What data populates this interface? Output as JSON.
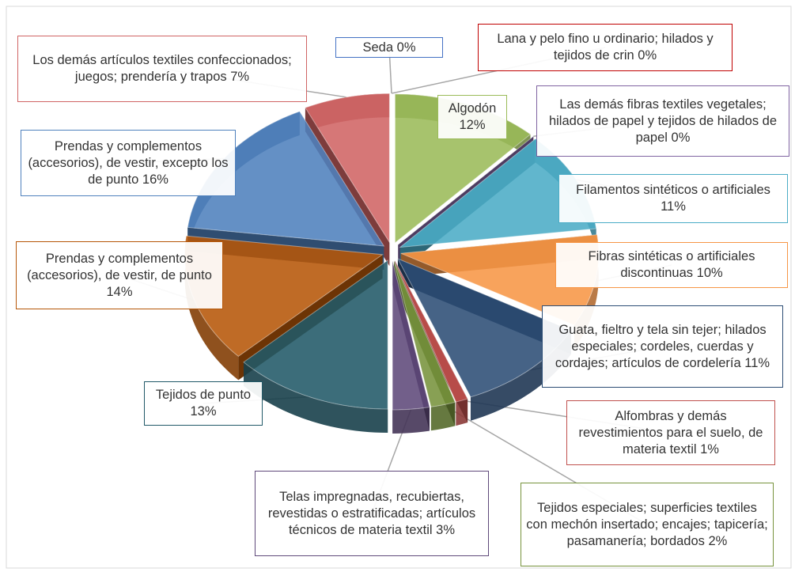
{
  "chart_data": {
    "type": "pie",
    "categories": [
      "Lana y pelo fino u ordinario; hilados y tejidos de crin",
      "Algodón",
      "Las demás fibras textiles vegetales; hilados de papel y tejidos de hilados de papel",
      "Filamentos sintéticos o artificiales",
      "Fibras sintéticas o artificiales discontinuas",
      "Guata, fieltro y tela sin tejer; hilados especiales; cordeles, cuerdas y cordajes; artículos de cordelería",
      "Alfombras y demás revestimientos para el suelo, de materia textil",
      "Tejidos especiales; superficies textiles con mechón insertado; encajes; tapicería; pasamanería; bordados",
      "Telas impregnadas, recubiertas, revestidas o estratificadas; artículos técnicos de materia textil",
      "Tejidos de punto",
      "Prendas y complementos (accesorios), de vestir, de punto",
      "Prendas y complementos (accesorios), de vestir, excepto los de punto",
      "Los demás artículos textiles confeccionados; juegos; prendería y trapos",
      "Seda"
    ],
    "values": [
      0,
      12,
      0,
      11,
      10,
      11,
      1,
      2,
      3,
      13,
      14,
      16,
      7,
      0
    ],
    "value_labels": [
      "0%",
      "12%",
      "0%",
      "11%",
      "10%",
      "11%",
      "1%",
      "2%",
      "3%",
      "13%",
      "14%",
      "16%",
      "7%",
      "0%"
    ],
    "colors": [
      "#c00000",
      "#9bbb59",
      "#8064a2",
      "#4bacc6",
      "#f79646",
      "#2c4d75",
      "#c0504d",
      "#77933c",
      "#5f497a",
      "#215968",
      "#b65708",
      "#4f81bd",
      "#d06464",
      "#4472c4"
    ]
  }
}
